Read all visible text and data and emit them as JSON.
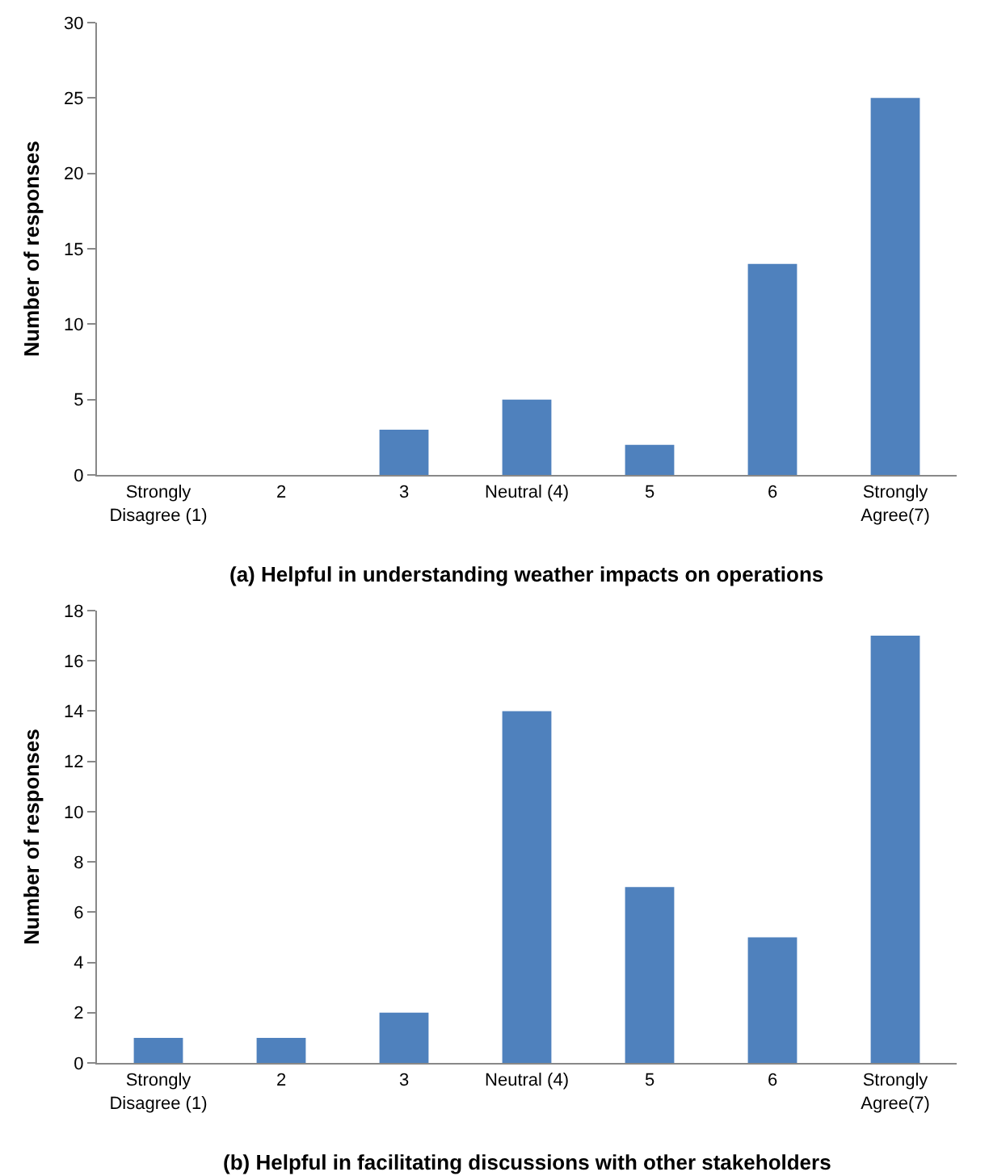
{
  "chart_data": [
    {
      "type": "bar",
      "title": "(a) Helpful in understanding weather impacts on operations",
      "ylabel": "Number of responses",
      "categories": [
        "Strongly Disagree (1)",
        "2",
        "3",
        "Neutral (4)",
        "5",
        "6",
        "Strongly Agree(7)"
      ],
      "values": [
        0,
        0,
        3,
        5,
        2,
        14,
        25
      ],
      "color": "#4f81bd",
      "ylim": [
        0,
        30
      ],
      "yticks": [
        0,
        5,
        10,
        15,
        20,
        25,
        30
      ],
      "grid": false,
      "legend": false
    },
    {
      "type": "bar",
      "title": "(b) Helpful in facilitating discussions with other stakeholders",
      "ylabel": "Number of responses",
      "categories": [
        "Strongly Disagree (1)",
        "2",
        "3",
        "Neutral (4)",
        "5",
        "6",
        "Strongly Agree(7)"
      ],
      "values": [
        1,
        1,
        2,
        14,
        7,
        5,
        17
      ],
      "color": "#4f81bd",
      "ylim": [
        0,
        18
      ],
      "yticks": [
        0,
        2,
        4,
        6,
        8,
        10,
        12,
        14,
        16,
        18
      ],
      "grid": false,
      "legend": false
    }
  ]
}
